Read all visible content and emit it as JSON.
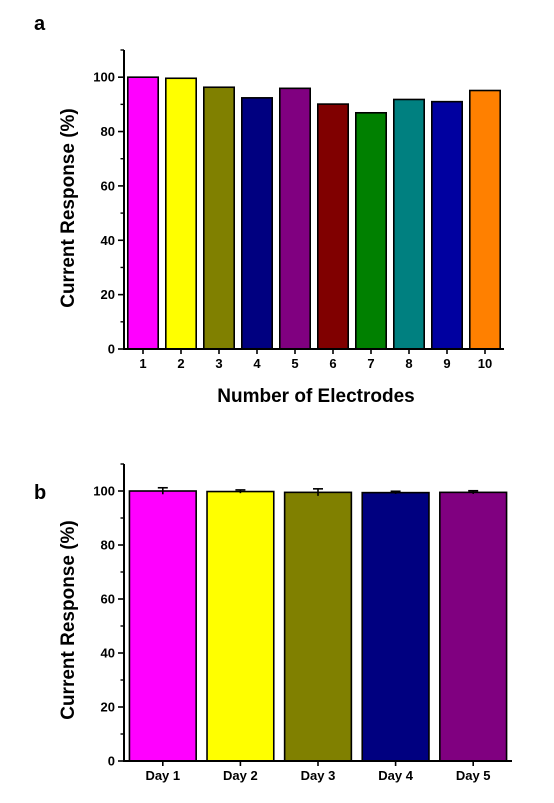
{
  "chart_data": [
    {
      "panel_label": "a",
      "type": "bar",
      "xlabel": "Number of Electrodes",
      "ylabel": "Current Response (%)",
      "ylim": [
        0,
        110
      ],
      "yticks": [
        0,
        20,
        40,
        60,
        80,
        100
      ],
      "categories": [
        "1",
        "2",
        "3",
        "4",
        "5",
        "6",
        "7",
        "8",
        "9",
        "10"
      ],
      "values": [
        100,
        99.6,
        96.3,
        92.4,
        95.9,
        90.1,
        86.9,
        91.8,
        91.0,
        95.1
      ],
      "colors": [
        "#ff00ff",
        "#ffff00",
        "#808000",
        "#000080",
        "#800080",
        "#800000",
        "#008000",
        "#008080",
        "#0000a0",
        "#ff8000"
      ],
      "error_bars": false
    },
    {
      "panel_label": "b",
      "type": "bar",
      "xlabel": "",
      "ylabel": "Current Response (%)",
      "ylim": [
        0,
        110
      ],
      "yticks": [
        0,
        20,
        40,
        60,
        80,
        100
      ],
      "categories": [
        "Day 1",
        "Day 2",
        "Day 3",
        "Day 4",
        "Day 5"
      ],
      "values": [
        100,
        99.8,
        99.5,
        99.4,
        99.5
      ],
      "errors": [
        1.2,
        0.6,
        1.3,
        0.5,
        0.6
      ],
      "colors": [
        "#ff00ff",
        "#ffff00",
        "#808000",
        "#000080",
        "#800080"
      ],
      "error_bars": true
    }
  ]
}
